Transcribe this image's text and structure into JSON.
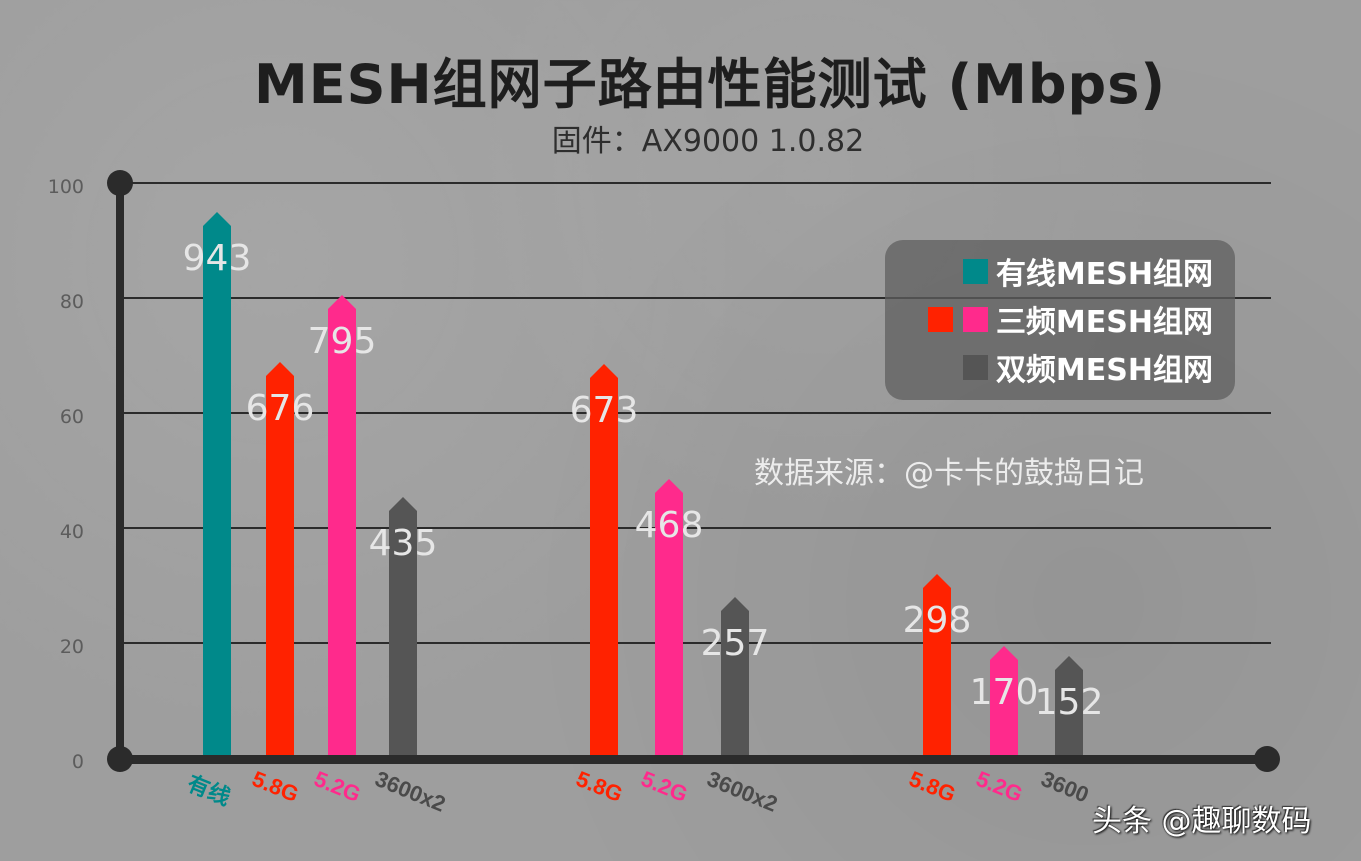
{
  "header": {
    "title": "MESH组网子路由性能测试 (Mbps)",
    "subtitle": "固件：AX9000 1.0.82"
  },
  "legend": {
    "items": [
      {
        "label": "有线MESH组网",
        "colors": [
          "#00898a"
        ]
      },
      {
        "label": "三频MESH组网",
        "colors": [
          "#ff2200",
          "#ff2a8c"
        ]
      },
      {
        "label": "双频MESH组网",
        "colors": [
          "#555555"
        ]
      }
    ]
  },
  "annotations": {
    "source": "数据来源：@卡卡的鼓捣日记",
    "watermark": "头条 @趣聊数码"
  },
  "chart_data": {
    "type": "bar",
    "title": "MESH组网子路由性能测试 (Mbps)",
    "subtitle": "固件：AX9000 1.0.82",
    "xlabel": "",
    "ylabel": "",
    "ylim": [
      0,
      100
    ],
    "yticks": [
      "0",
      "20",
      "40",
      "60",
      "80",
      "100"
    ],
    "grid": true,
    "legend_position": "upper right",
    "groups": [
      {
        "bars": [
          {
            "label": "有线",
            "value": 943,
            "series": "有线MESH组网",
            "color": "#00898a"
          },
          {
            "label": "5.8G",
            "value": 676,
            "series": "三频MESH组网",
            "color": "#ff2200"
          },
          {
            "label": "5.2G",
            "value": 795,
            "series": "三频MESH组网",
            "color": "#ff2a8c"
          },
          {
            "label": "3600x2",
            "value": 435,
            "series": "双频MESH组网",
            "color": "#555555"
          }
        ]
      },
      {
        "bars": [
          {
            "label": "5.8G",
            "value": 673,
            "series": "三频MESH组网",
            "color": "#ff2200"
          },
          {
            "label": "5.2G",
            "value": 468,
            "series": "三频MESH组网",
            "color": "#ff2a8c"
          },
          {
            "label": "3600x2",
            "value": 257,
            "series": "双频MESH组网",
            "color": "#555555"
          }
        ]
      },
      {
        "bars": [
          {
            "label": "5.8G",
            "value": 298,
            "series": "三频MESH组网",
            "color": "#ff2200"
          },
          {
            "label": "5.2G",
            "value": 170,
            "series": "三频MESH组网",
            "color": "#ff2a8c"
          },
          {
            "label": "3600",
            "value": 152,
            "series": "双频MESH组网",
            "color": "#555555"
          }
        ]
      }
    ],
    "units": "Mbps"
  }
}
